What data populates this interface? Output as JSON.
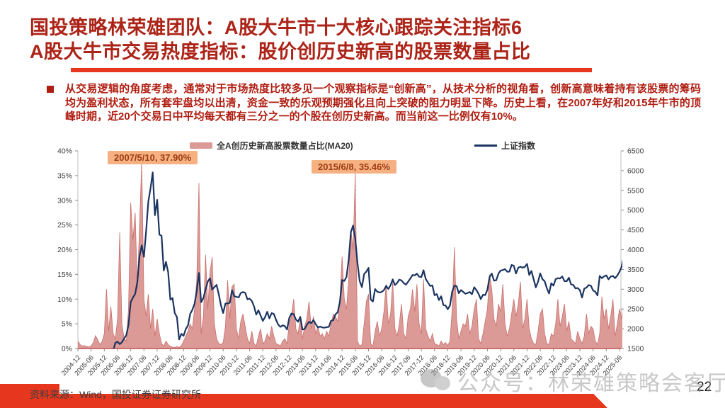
{
  "slide": {
    "title_line1": "国投策略林荣雄团队：A股大牛市十大核心跟踪关注指标6",
    "title_line2": "A股大牛市交易热度指标：股价创历史新高的股票数量占比",
    "body_text": "从交易逻辑的角度考虑，通常对于市场热度比较多见一个观察指标是“创新高”，从技术分析的视角看，创新高意味着持有该股票的筹码均为盈利状态，所有套牢盘均以出清，资金一致的乐观预期强化且向上突破的阻力明显下降。历史上看，在2007年好和2015年牛市的顶峰时期，近20个交易日中平均每天都有三分之一的个股在创历史新高。而当前这一比例仅有10%。",
    "footer_source": "资料来源：Wind，国投证券证券研究所",
    "watermark": "公众号：林荣雄策略会客厅",
    "page_number": "22"
  },
  "colors": {
    "title_red": "#AC2317",
    "body_red": "#B01E12",
    "accent_red": "#E6371E",
    "area_pink": "#DC9A97",
    "line_navy": "#1B3461",
    "annotation_bg": "#F6B183",
    "annotation_text": "#9E3B12",
    "axis_text": "#404040"
  },
  "chart_data": {
    "type": "area+line combo",
    "x_start": "2004-12",
    "x_interval": "monthly",
    "x_tick_labels": [
      "2004-12",
      "2005-06",
      "2005-12",
      "2006-06",
      "2006-12",
      "2007-06",
      "2007-12",
      "2008-06",
      "2008-12",
      "2009-06",
      "2009-12",
      "2010-06",
      "2010-12",
      "2011-06",
      "2011-12",
      "2012-06",
      "2012-12",
      "2013-06",
      "2013-12",
      "2014-06",
      "2014-12",
      "2015-06",
      "2015-12",
      "2016-06",
      "2016-12",
      "2017-06",
      "2017-12",
      "2018-06",
      "2018-12",
      "2019-06",
      "2019-12",
      "2020-06",
      "2020-12",
      "2021-06",
      "2021-12",
      "2022-06",
      "2022-12",
      "2023-06",
      "2023-12",
      "2024-06",
      "2024-12",
      "2025-06"
    ],
    "left_axis": {
      "min": 0,
      "max": 40,
      "step": 5,
      "format": "percent"
    },
    "right_axis": {
      "min": 1500,
      "max": 6500,
      "step": 500
    },
    "grid": false,
    "legend_position": "top-center",
    "series": [
      {
        "name": "全A创历史新高股票数量占比(MA20)",
        "type": "area",
        "axis": "left",
        "unit": "%",
        "color": "#DC9A97",
        "values": [
          1.5,
          0.8,
          0.5,
          0.6,
          0.4,
          0.3,
          0.5,
          1.2,
          2.6,
          1.8,
          0.8,
          1.4,
          3.0,
          12.0,
          3.5,
          8.5,
          3.0,
          2.0,
          6.0,
          23.5,
          5.0,
          2.0,
          1.5,
          8.0,
          29.5,
          22.0,
          27.5,
          12.0,
          25.0,
          37.9,
          10.0,
          6.5,
          11.0,
          4.0,
          8.0,
          2.5,
          6.0,
          3.0,
          1.0,
          0.5,
          1.5,
          0.8,
          0.4,
          0.3,
          0.2,
          0.4,
          0.2,
          0.6,
          1.5,
          2.5,
          3.5,
          5.0,
          4.0,
          8.0,
          14.0,
          33.5,
          3.0,
          6.5,
          19.0,
          8.0,
          15.5,
          18.5,
          5.0,
          2.0,
          1.0,
          0.8,
          1.2,
          4.5,
          13.8,
          6.0,
          12.5,
          13.0,
          4.0,
          2.0,
          5.5,
          7.0,
          4.5,
          2.0,
          1.0,
          3.5,
          1.0,
          0.5,
          2.5,
          4.0,
          1.0,
          1.5,
          3.0,
          2.0,
          4.5,
          2.5,
          1.0,
          0.8,
          0.5,
          1.5,
          2.0,
          1.0,
          5.0,
          6.5,
          10.0,
          4.0,
          3.0,
          6.0,
          2.0,
          4.5,
          6.0,
          9.5,
          4.0,
          6.5,
          3.0,
          4.5,
          2.5,
          3.0,
          2.0,
          3.5,
          2.5,
          5.0,
          7.0,
          6.5,
          5.5,
          10.0,
          18.6,
          10.0,
          8.0,
          14.0,
          24.0,
          20.0,
          35.46,
          1.5,
          0.5,
          0.8,
          5.0,
          9.5,
          11.0,
          1.0,
          0.5,
          3.5,
          5.5,
          2.5,
          4.0,
          7.5,
          13.0,
          5.0,
          7.0,
          13.5,
          4.0,
          2.5,
          5.0,
          9.0,
          3.0,
          2.0,
          6.5,
          8.0,
          12.0,
          7.5,
          13.0,
          5.0,
          3.0,
          14.0,
          4.0,
          2.5,
          1.5,
          3.0,
          1.0,
          0.8,
          0.5,
          1.5,
          0.8,
          1.2,
          0.6,
          1.5,
          8.0,
          20.5,
          6.0,
          2.0,
          3.5,
          5.0,
          4.5,
          7.0,
          3.0,
          4.5,
          8.0,
          10.0,
          2.0,
          1.0,
          3.0,
          5.5,
          8.0,
          15.0,
          12.0,
          6.0,
          4.5,
          9.0,
          7.5,
          13.0,
          5.0,
          2.5,
          4.0,
          7.0,
          10.0,
          6.5,
          9.0,
          13.5,
          4.0,
          6.0,
          10.0,
          4.0,
          2.0,
          1.0,
          0.8,
          3.5,
          7.0,
          8.0,
          3.0,
          1.0,
          0.8,
          3.0,
          2.5,
          5.0,
          10.0,
          4.5,
          6.5,
          9.0,
          3.5,
          5.5,
          2.0,
          1.5,
          1.0,
          3.5,
          2.0,
          1.0,
          2.5,
          7.0,
          3.0,
          4.5,
          4.0,
          1.5,
          0.8,
          3.0,
          10.5,
          6.0,
          8.0,
          4.0,
          6.5,
          10.0,
          2.5,
          5.0,
          8.0,
          6.0,
          12.0
        ]
      },
      {
        "name": "上证指数",
        "type": "line",
        "axis": "right",
        "color": "#1B3461",
        "values": [
          1267,
          1191,
          1306,
          1182,
          1159,
          1061,
          1081,
          1084,
          1163,
          1155,
          1092,
          1099,
          1161,
          1258,
          1299,
          1298,
          1440,
          1641,
          1672,
          1612,
          1658,
          1752,
          1838,
          2099,
          2675,
          2786,
          2881,
          3184,
          3841,
          4109,
          3821,
          4471,
          5218,
          5552,
          5955,
          4872,
          5262,
          4383,
          4348,
          3472,
          3693,
          3433,
          2736,
          2776,
          2397,
          2294,
          1729,
          1871,
          1821,
          1991,
          2083,
          2373,
          2478,
          2632,
          2959,
          3412,
          2668,
          2779,
          2995,
          3195,
          3277,
          2989,
          3052,
          3109,
          2871,
          2592,
          2398,
          2638,
          2639,
          2656,
          2979,
          2820,
          2808,
          2790,
          2905,
          2928,
          2911,
          2743,
          2762,
          2701,
          2567,
          2359,
          2468,
          2333,
          2199,
          2293,
          2428,
          2262,
          2396,
          2372,
          2225,
          2103,
          2047,
          2086,
          2068,
          1980,
          2269,
          2385,
          2365,
          2237,
          2177,
          2301,
          1979,
          1994,
          2098,
          2175,
          2141,
          2221,
          2116,
          2033,
          2056,
          2033,
          2026,
          2039,
          2048,
          2202,
          2217,
          2364,
          2420,
          2683,
          3235,
          3210,
          3310,
          3748,
          4442,
          4612,
          4277,
          3664,
          3206,
          3053,
          3383,
          3445,
          3539,
          2738,
          2688,
          3004,
          2938,
          2917,
          2930,
          2979,
          3085,
          3005,
          3100,
          3250,
          3104,
          3159,
          3242,
          3223,
          3155,
          3117,
          3192,
          3273,
          3361,
          3349,
          3393,
          3317,
          3307,
          3481,
          3259,
          3169,
          3082,
          3095,
          2847,
          2876,
          2725,
          2821,
          2603,
          2588,
          2494,
          2585,
          2941,
          3091,
          3078,
          2899,
          2979,
          2933,
          2886,
          2905,
          2929,
          2872,
          3050,
          2977,
          2880,
          2750,
          2860,
          2852,
          2985,
          3310,
          3396,
          3218,
          3225,
          3392,
          3473,
          3483,
          3509,
          3442,
          3447,
          3615,
          3591,
          3397,
          3544,
          3568,
          3547,
          3564,
          3640,
          3361,
          3462,
          3252,
          3047,
          3186,
          3399,
          3253,
          3202,
          3024,
          2893,
          3151,
          3089,
          3255,
          3280,
          3273,
          3323,
          3205,
          3202,
          3291,
          3120,
          3110,
          3019,
          3030,
          2975,
          2789,
          3015,
          3041,
          3105,
          3087,
          2967,
          2938,
          2842,
          3336,
          3280,
          3326,
          3352,
          3251,
          3321,
          3336,
          3279,
          3347,
          3444,
          3573,
          3858
        ]
      }
    ],
    "annotations": [
      {
        "label": "2007/5/10, 37.90%",
        "month_index": 29,
        "value": 37.9
      },
      {
        "label": "2015/6/8, 35.46%",
        "month_index": 126,
        "value": 35.46
      }
    ]
  }
}
